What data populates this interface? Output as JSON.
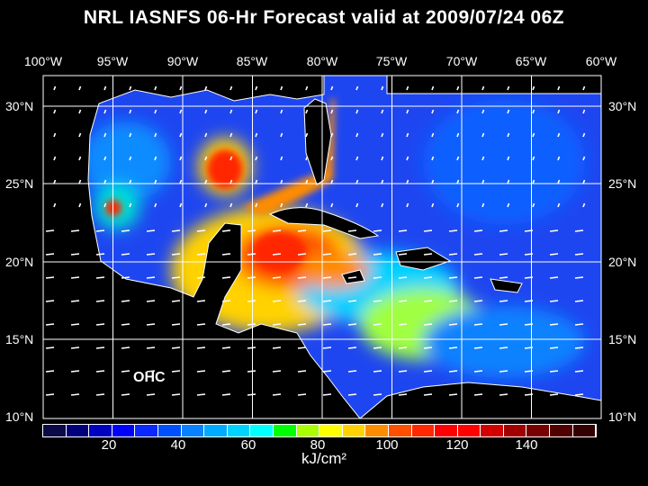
{
  "title": "NRL IASNFS  06-Hr Forecast valid at 2009/07/24 06Z",
  "longitude_labels": [
    "100°W",
    "95°W",
    "90°W",
    "85°W",
    "80°W",
    "75°W",
    "70°W",
    "65°W",
    "60°W"
  ],
  "latitude_labels": [
    "30°N",
    "25°N",
    "20°N",
    "15°N",
    "10°N"
  ],
  "field_label": "OHC",
  "colorbar": {
    "unit": "kJ/cm²",
    "tick_labels": [
      "20",
      "40",
      "60",
      "80",
      "100",
      "120",
      "140"
    ],
    "colors": [
      "#0a0a46",
      "#00007a",
      "#0000c0",
      "#0000ff",
      "#0a28ff",
      "#0050ff",
      "#0a82ff",
      "#00aaff",
      "#00d2ff",
      "#00ffff",
      "#00ff00",
      "#aaff00",
      "#ffff00",
      "#ffd200",
      "#ff8c00",
      "#ff5000",
      "#ff2800",
      "#ff0000",
      "#ff0000",
      "#d20000",
      "#a00000",
      "#780000",
      "#500000",
      "#320000"
    ]
  }
}
